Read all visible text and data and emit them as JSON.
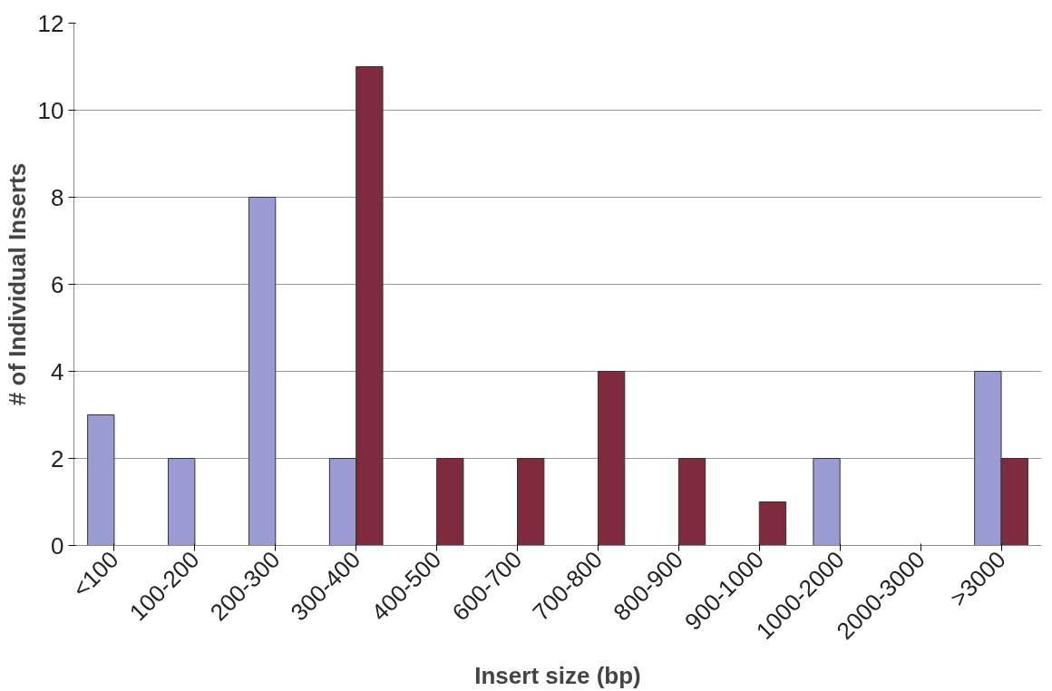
{
  "chart_data": {
    "type": "bar",
    "xlabel": "Insert size (bp)",
    "ylabel": "# of Individual Inserts",
    "categories": [
      "<100",
      "100-200",
      "200-300",
      "300-400",
      "400-500",
      "600-700",
      "700-800",
      "800-900",
      "900-1000",
      "1000-2000",
      "2000-3000",
      ">3000"
    ],
    "series": [
      {
        "color": "#9b9bd3",
        "values": [
          3,
          2,
          8,
          2,
          null,
          null,
          null,
          null,
          null,
          2,
          null,
          4
        ]
      },
      {
        "color": "#7e2b3e",
        "values": [
          null,
          null,
          null,
          11,
          2,
          2,
          4,
          2,
          1,
          null,
          null,
          2
        ]
      }
    ],
    "ylim": [
      0,
      12
    ],
    "yticks": [
      0,
      2,
      4,
      6,
      8,
      10,
      12
    ],
    "grid": "y"
  }
}
